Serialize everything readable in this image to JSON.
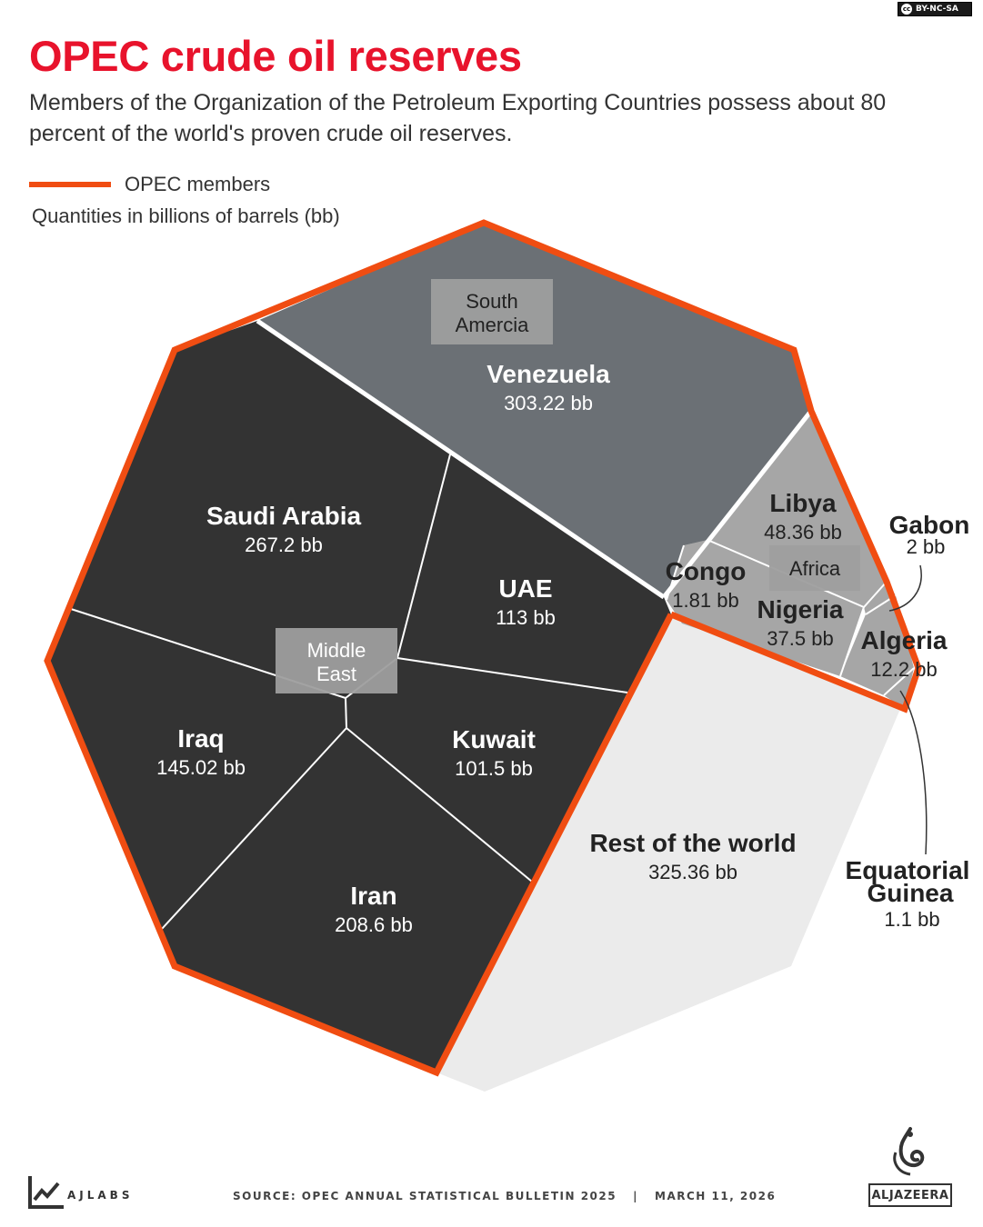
{
  "license": "BY-NC-SA",
  "title": "OPEC crude oil reserves",
  "subtitle": "Members of the Organization of the Petroleum Exporting Countries possess about 80 percent of the world's proven crude oil reserves.",
  "legend": {
    "label": "OPEC members",
    "color": "#f04d12"
  },
  "units": "Quantities in billions of barrels (bb)",
  "colors": {
    "middle_east": "#333333",
    "south_america": "#6b7075",
    "africa": "#a6a6a6",
    "rest_of_world": "#ebebeb",
    "opec_border": "#f04d12",
    "group_label_bg": "#9e9e9e"
  },
  "chart_data": {
    "type": "voronoi treemap",
    "unit": "bb",
    "groups": [
      {
        "name": "Middle East",
        "opec": true,
        "items": [
          {
            "name": "Saudi Arabia",
            "value": 267.2,
            "label": "267.2 bb"
          },
          {
            "name": "Iraq",
            "value": 145.02,
            "label": "145.02 bb"
          },
          {
            "name": "Iran",
            "value": 208.6,
            "label": "208.6 bb"
          },
          {
            "name": "UAE",
            "value": 113,
            "label": "113 bb"
          },
          {
            "name": "Kuwait",
            "value": 101.5,
            "label": "101.5 bb"
          }
        ]
      },
      {
        "name": "South Amercia",
        "opec": true,
        "items": [
          {
            "name": "Venezuela",
            "value": 303.22,
            "label": "303.22 bb"
          }
        ]
      },
      {
        "name": "Africa",
        "opec": true,
        "items": [
          {
            "name": "Libya",
            "value": 48.36,
            "label": "48.36 bb"
          },
          {
            "name": "Nigeria",
            "value": 37.5,
            "label": "37.5 bb"
          },
          {
            "name": "Algeria",
            "value": 12.2,
            "label": "12.2 bb"
          },
          {
            "name": "Congo",
            "value": 1.81,
            "label": "1.81 bb"
          },
          {
            "name": "Gabon",
            "value": 2,
            "label": "2 bb"
          },
          {
            "name": "Equatorial Guinea",
            "value": 1.1,
            "label": "1.1 bb"
          }
        ]
      },
      {
        "name": "",
        "opec": false,
        "items": [
          {
            "name": "Rest of the world",
            "value": 325.36,
            "label": "325.36 bb"
          }
        ]
      }
    ],
    "callouts": [
      {
        "name": "Gabon",
        "label": "2 bb"
      },
      {
        "name_lines": [
          "Equatorial",
          "Guinea"
        ],
        "label": "1.1 bb"
      }
    ]
  },
  "footer": {
    "brand": "AJLABS",
    "source": "SOURCE: OPEC ANNUAL STATISTICAL BULLETIN 2025",
    "date": "MARCH 11, 2026",
    "publisher": "ALJAZEERA"
  }
}
